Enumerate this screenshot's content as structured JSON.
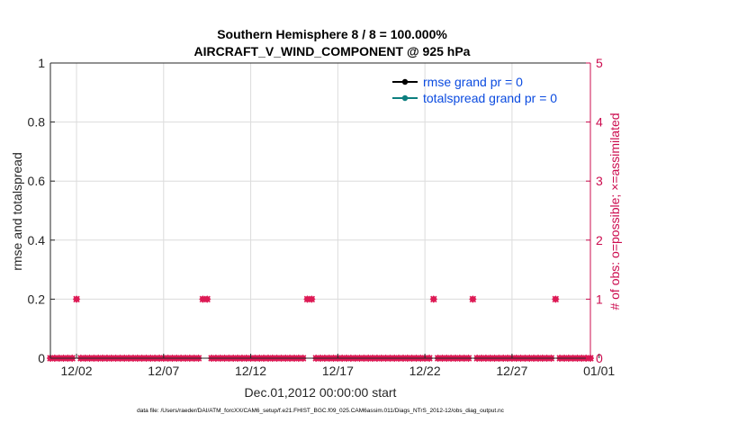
{
  "colors": {
    "left_axis": "#262626",
    "right_axis": "#cc0c4f",
    "marker": "#dd1a55",
    "legend_text": "#0b4be0",
    "rmse_line": "#000000",
    "spread_line": "#0d7f7f",
    "grid": "#dcdcdc"
  },
  "chart_data": {
    "type": "scatter",
    "title": "Southern Hemisphere 8 / 8 = 100.000%",
    "subtitle": "AIRCRAFT_V_WIND_COMPONENT @ 925 hPa",
    "xlabel": "Dec.01,2012 00:00:00 start",
    "ylabel_left": "rmse and totalspread",
    "ylabel_right": "# of obs: o=possible; ×=assimilated",
    "footer": "data file: /Users/raeder/DAI/ATM_forcXX/CAM6_setup/f.e21.FHIST_BGC.f09_025.CAM6assim.011/Diags_NTrS_2012-12/obs_diag_output.nc",
    "xlim": [
      0.5,
      31.5
    ],
    "ylim_left": [
      0,
      1
    ],
    "ylim_right": [
      0,
      5
    ],
    "x_ticks": [
      {
        "x": 2,
        "label": "12/02"
      },
      {
        "x": 7,
        "label": "12/07"
      },
      {
        "x": 12,
        "label": "12/12"
      },
      {
        "x": 17,
        "label": "12/17"
      },
      {
        "x": 22,
        "label": "12/22"
      },
      {
        "x": 27,
        "label": "12/27"
      },
      {
        "x": 32,
        "label": "01/01"
      }
    ],
    "y_left_ticks": [
      "0",
      "0.2",
      "0.4",
      "0.6",
      "0.8",
      "1"
    ],
    "y_right_ticks": [
      "0",
      "1",
      "2",
      "3",
      "4",
      "5"
    ],
    "grid": true,
    "legend_position": "top-right",
    "series": [
      {
        "name": "rmse grand pr = 0",
        "x": [],
        "y": []
      },
      {
        "name": "totalspread grand pr = 0",
        "x": [],
        "y": []
      }
    ],
    "obs_count": {
      "x_start": 0.5,
      "x_end": 31.5,
      "step": 0.25,
      "baseline": 0,
      "nonzero": [
        {
          "x": 2.0,
          "count": 1
        },
        {
          "x": 9.25,
          "count": 1
        },
        {
          "x": 9.5,
          "count": 1
        },
        {
          "x": 15.25,
          "count": 1
        },
        {
          "x": 15.5,
          "count": 1
        },
        {
          "x": 22.5,
          "count": 1
        },
        {
          "x": 24.75,
          "count": 1
        },
        {
          "x": 29.5,
          "count": 1
        }
      ]
    }
  }
}
